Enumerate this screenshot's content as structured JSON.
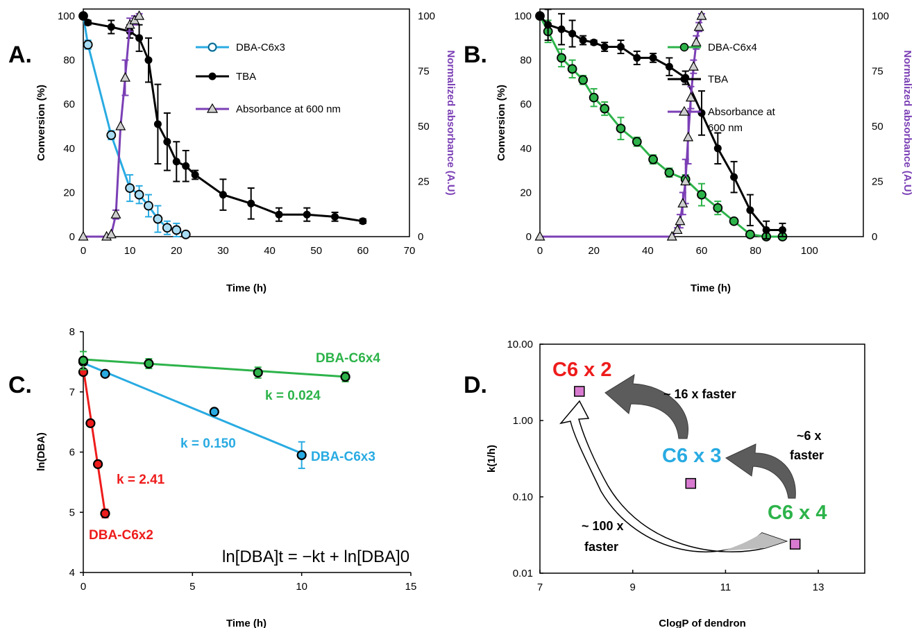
{
  "panels": {
    "a": {
      "letter": "A.",
      "legend": [
        "DBA-C6x3",
        "TBA",
        "Absorbance at 600 nm"
      ]
    },
    "b": {
      "letter": "B.",
      "legend": [
        "DBA-C6x4",
        "TBA",
        "Absorbance at",
        "600 nm"
      ]
    },
    "c": {
      "letter": "C.",
      "equation": "ln[DBA]t = −kt + ln[DBA]0",
      "labels": [
        "DBA-C6x4",
        "k = 0.024",
        "k = 0.150",
        "DBA-C6x3",
        "k = 2.41",
        "DBA-C6x2"
      ]
    },
    "d": {
      "letter": "D.",
      "labels": [
        "C6 x 2",
        "C6 x 3",
        "C6 x 4",
        "~ 16 x faster",
        "~6 x",
        "faster",
        "~ 100 x",
        "faster"
      ]
    }
  },
  "colors": {
    "dba_c6x2": "#ee1c1c",
    "dba_c6x3": "#29abe2",
    "dba_c6x4": "#2db34a",
    "tba": "#000000",
    "absorbance": "#7b3fb5",
    "square": "#d87bd0",
    "arrow_gray": "#5c5c5c"
  },
  "chart_data": [
    {
      "type": "line",
      "panel": "A",
      "xlabel": "Time (h)",
      "ylabel": "Conversion (%)",
      "y2label": "Normalized absorbance (A.U)",
      "xlim": [
        0,
        70
      ],
      "ylim": [
        0,
        100
      ],
      "y2lim": [
        0,
        100
      ],
      "xticks": [
        0,
        10,
        20,
        30,
        40,
        50,
        60,
        70
      ],
      "yticks": [
        0,
        20,
        40,
        60,
        80,
        100
      ],
      "y2ticks": [
        0,
        25,
        50,
        75,
        100
      ],
      "legend_position": "top-right",
      "series": [
        {
          "name": "DBA-C6x3",
          "axis": "left",
          "marker": "circle",
          "x": [
            0,
            1,
            6,
            10,
            12,
            14,
            16,
            18,
            20,
            22
          ],
          "y": [
            100,
            87,
            46,
            22,
            19,
            14,
            8,
            4,
            3,
            1
          ],
          "err": [
            0,
            2,
            2,
            6,
            4,
            5,
            6,
            3,
            3,
            1
          ]
        },
        {
          "name": "TBA",
          "axis": "left",
          "marker": "dot",
          "x": [
            0,
            1,
            6,
            10,
            12,
            14,
            16,
            18,
            20,
            22,
            24,
            30,
            36,
            42,
            48,
            54,
            60
          ],
          "y": [
            100,
            97,
            95,
            93,
            90,
            80,
            51,
            43,
            34,
            32,
            28,
            19,
            15,
            10,
            10,
            9,
            7
          ],
          "err": [
            0,
            1,
            3,
            3,
            6,
            10,
            18,
            13,
            9,
            7,
            2,
            7,
            7,
            3,
            3,
            2,
            1
          ]
        },
        {
          "name": "Absorbance at 600 nm",
          "axis": "right",
          "marker": "triangle",
          "x": [
            0,
            5,
            6,
            7,
            8,
            9,
            10,
            11,
            12
          ],
          "y": [
            0,
            0,
            1,
            10,
            50,
            72,
            96,
            98,
            100
          ],
          "err": [
            0,
            0,
            0,
            2,
            0,
            8,
            3,
            2,
            1
          ]
        }
      ]
    },
    {
      "type": "line",
      "panel": "B",
      "xlabel": "Time (h)",
      "ylabel": "Conversion (%)",
      "y2label": "Normalized absorbance (A.U)",
      "xlim": [
        0,
        120
      ],
      "ylim": [
        0,
        100
      ],
      "y2lim": [
        0,
        100
      ],
      "xticks": [
        0,
        20,
        40,
        60,
        80,
        100
      ],
      "yticks": [
        0,
        20,
        40,
        60,
        80,
        100
      ],
      "y2ticks": [
        0,
        25,
        50,
        75,
        100
      ],
      "legend_position": "top-right",
      "series": [
        {
          "name": "DBA-C6x4",
          "axis": "left",
          "marker": "circle",
          "x": [
            0,
            3,
            8,
            12,
            16,
            20,
            24,
            30,
            36,
            42,
            48,
            54,
            60,
            66,
            72,
            78,
            84,
            90
          ],
          "y": [
            100,
            93,
            81,
            76,
            71,
            63,
            58,
            49,
            43,
            35,
            29,
            26,
            19,
            13,
            7,
            1,
            0,
            0
          ],
          "err": [
            0,
            5,
            4,
            4,
            2,
            4,
            3,
            5,
            2,
            2,
            2,
            2,
            5,
            3,
            1,
            1,
            0,
            0
          ]
        },
        {
          "name": "TBA",
          "axis": "left",
          "marker": "dot",
          "x": [
            0,
            3,
            8,
            12,
            16,
            20,
            24,
            30,
            36,
            42,
            48,
            54,
            60,
            66,
            72,
            78,
            84,
            90
          ],
          "y": [
            100,
            96,
            94,
            92,
            89,
            88,
            86,
            86,
            81,
            81,
            77,
            72,
            56,
            40,
            27,
            12,
            3,
            3
          ],
          "err": [
            0,
            7,
            7,
            6,
            2,
            1,
            2,
            3,
            3,
            2,
            4,
            3,
            10,
            7,
            7,
            7,
            4,
            3
          ]
        },
        {
          "name": "Absorbance at 600 nm",
          "axis": "right",
          "marker": "triangle",
          "x": [
            0,
            49,
            51,
            52,
            53,
            54,
            55,
            56,
            57,
            58,
            59,
            60
          ],
          "y": [
            0,
            0,
            3,
            7,
            15,
            25,
            45,
            63,
            77,
            88,
            95,
            100
          ],
          "err": [
            0,
            0,
            1,
            3,
            5,
            10,
            12,
            5,
            3,
            3,
            2,
            1
          ]
        }
      ]
    },
    {
      "type": "scatter",
      "panel": "C",
      "xlabel": "Time (h)",
      "ylabel": "ln(DBA)",
      "xlim": [
        0,
        15
      ],
      "ylim": [
        4,
        8
      ],
      "xticks": [
        0,
        5,
        10,
        15
      ],
      "yticks": [
        4,
        5,
        6,
        7,
        8
      ],
      "series": [
        {
          "name": "DBA-C6x2",
          "marker": "circle",
          "x": [
            0,
            0.33,
            0.67,
            1
          ],
          "y": [
            7.33,
            6.48,
            5.8,
            4.98
          ],
          "err": [
            0,
            0,
            0,
            0.07
          ],
          "fit": {
            "k": 2.41,
            "intercept": 7.39,
            "x_range": [
              0,
              1
            ]
          }
        },
        {
          "name": "DBA-C6x3",
          "marker": "circle",
          "x": [
            0,
            1,
            6,
            10
          ],
          "y": [
            7.5,
            7.3,
            6.67,
            5.95
          ],
          "err": [
            0.05,
            0,
            0,
            0.22
          ],
          "fit": {
            "k": 0.15,
            "intercept": 7.48,
            "x_range": [
              0,
              10
            ]
          }
        },
        {
          "name": "DBA-C6x4",
          "marker": "circle",
          "x": [
            0,
            3,
            8,
            12
          ],
          "y": [
            7.52,
            7.47,
            7.32,
            7.25
          ],
          "err": [
            0.15,
            0.08,
            0.09,
            0.08
          ],
          "fit": {
            "k": 0.024,
            "intercept": 7.54,
            "x_range": [
              0,
              12
            ]
          }
        }
      ]
    },
    {
      "type": "scatter",
      "panel": "D",
      "xlabel": "ClogP of dendron",
      "ylabel": "k(1/h)",
      "xlim": [
        7,
        14
      ],
      "ylim": [
        0.01,
        10
      ],
      "yscale": "log",
      "xticks": [
        7,
        9,
        11,
        13
      ],
      "yticks": [
        "0.01",
        "0.10",
        "1.00",
        "10.00"
      ],
      "series": [
        {
          "marker": "square",
          "x": [
            7.85,
            10.25,
            12.5
          ],
          "y": [
            2.41,
            0.15,
            0.024
          ]
        }
      ]
    }
  ]
}
